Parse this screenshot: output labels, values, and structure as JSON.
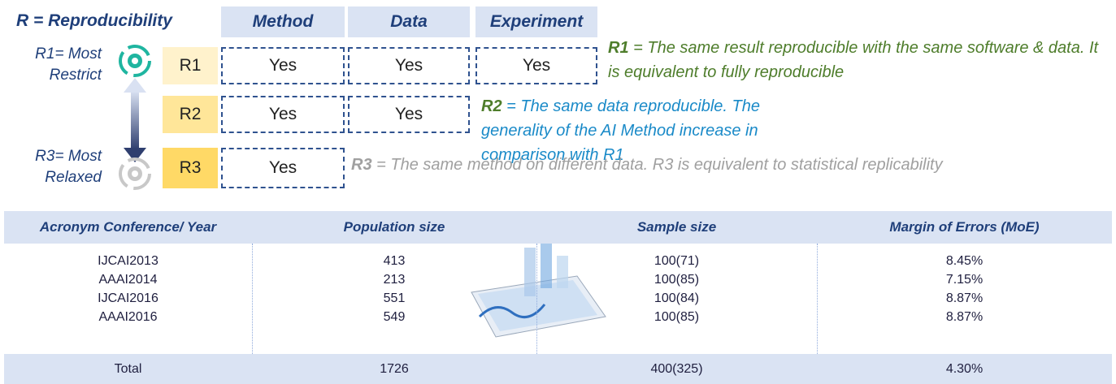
{
  "legend": {
    "title": "R = Reproducibility",
    "columns": [
      "Method",
      "Data",
      "Experiment"
    ]
  },
  "levels": {
    "top": "R1= Most Restrict",
    "bottom": "R3= Most Relaxed"
  },
  "rows": [
    {
      "label": "R1",
      "cells": [
        "Yes",
        "Yes",
        "Yes"
      ]
    },
    {
      "label": "R2",
      "cells": [
        "Yes",
        "Yes"
      ]
    },
    {
      "label": "R3",
      "cells": [
        "Yes"
      ]
    }
  ],
  "notes": [
    {
      "key": "R1",
      "text": "= The same result reproducible with the same software & data. It is equivalent to fully reproducible"
    },
    {
      "key": "R2",
      "text": "= The same data reproducible. The generality of the AI Method increase in comparison with R1"
    },
    {
      "key": "R3",
      "text": "= The same method on different data. R3 is equivalent to statistical replicability"
    }
  ],
  "table": {
    "headers": [
      "Acronym Conference/ Year",
      "Population size",
      "Sample size",
      "Margin of Errors (MoE)"
    ],
    "rows": [
      [
        "IJCAI2013",
        "413",
        "100(71)",
        "8.45%"
      ],
      [
        "AAAI2014",
        "213",
        "100(85)",
        "7.15%"
      ],
      [
        "IJCAI2016",
        "551",
        "100(84)",
        "8.87%"
      ],
      [
        "AAAI2016",
        "549",
        "100(85)",
        "8.87%"
      ]
    ],
    "total": [
      "Total",
      "1726",
      "400(325)",
      "4.30%"
    ]
  }
}
